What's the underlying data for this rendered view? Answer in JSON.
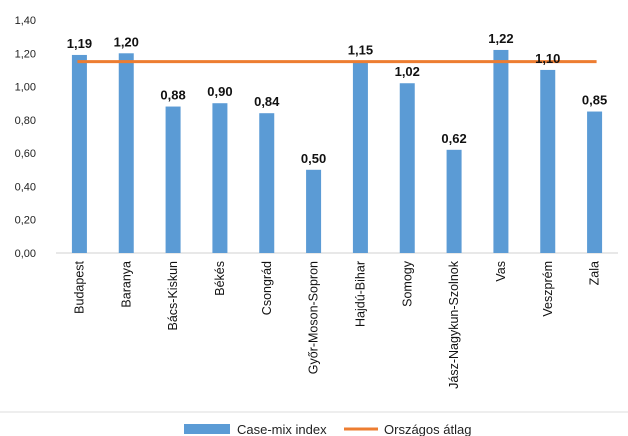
{
  "chart_data": {
    "type": "bar",
    "categories": [
      "Budapest",
      "Baranya",
      "Bács-Kiskun",
      "Békés",
      "Csongrád",
      "Győr-Moson-Sopron",
      "Hajdú-Bihar",
      "Somogy",
      "Jász-Nagykun-Szolnok",
      "Vas",
      "Veszprém",
      "Zala"
    ],
    "series": [
      {
        "name": "Case-mix index",
        "type": "bar",
        "color": "#5B9BD5",
        "values": [
          1.19,
          1.2,
          0.88,
          0.9,
          0.84,
          0.5,
          1.15,
          1.02,
          0.62,
          1.22,
          1.1,
          0.85
        ],
        "data_labels": [
          "1,19",
          "1,20",
          "0,88",
          "0,90",
          "0,84",
          "0,50",
          "1,15",
          "1,02",
          "0,62",
          "1,22",
          "1,10",
          "0,85"
        ]
      },
      {
        "name": "Országos átlag",
        "type": "line",
        "color": "#ED7D31",
        "value": 1.15
      }
    ],
    "ylim": [
      0,
      1.4
    ],
    "yticks": [
      0,
      0.2,
      0.4,
      0.6,
      0.8,
      1.0,
      1.2,
      1.4
    ],
    "ytick_labels": [
      "0,00",
      "0,20",
      "0,40",
      "0,60",
      "0,80",
      "1,00",
      "1,20",
      "1,40"
    ],
    "grid": false,
    "legend_position": "bottom"
  }
}
